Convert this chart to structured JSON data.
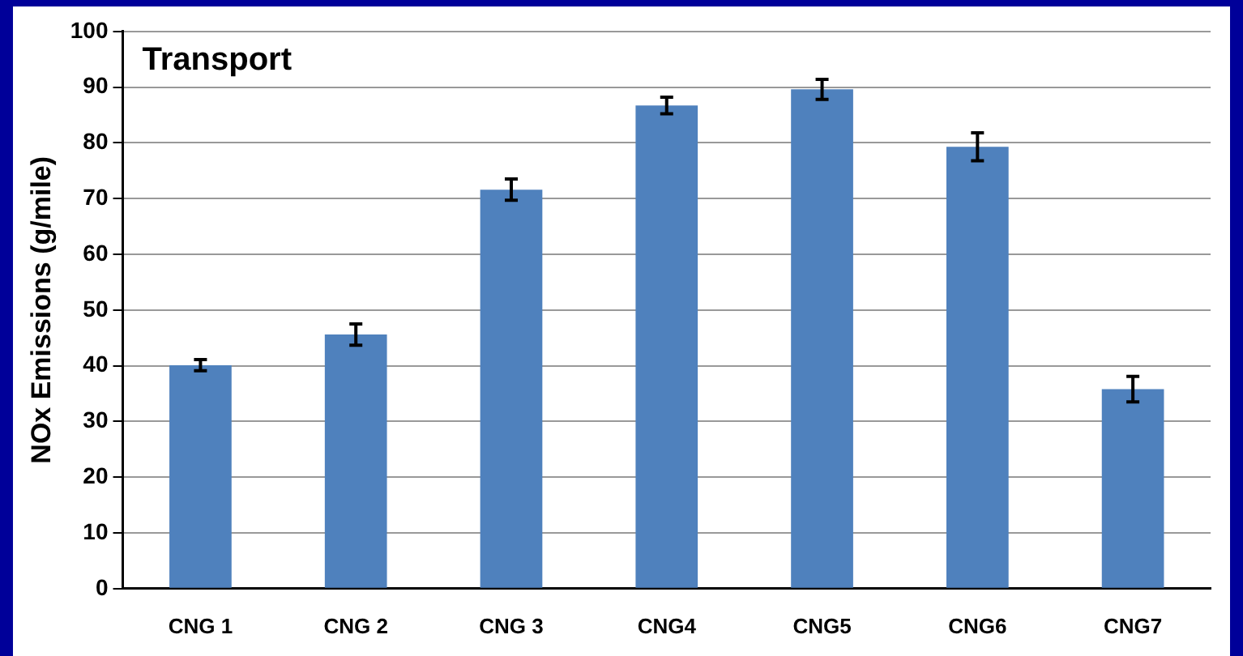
{
  "chart_data": {
    "type": "bar",
    "title": "Transport",
    "ylabel": "NOx Emissions (g/mile)",
    "categories": [
      "CNG 1",
      "CNG 2",
      "CNG 3",
      "CNG4",
      "CNG5",
      "CNG6",
      "CNG7"
    ],
    "values": [
      40.1,
      45.6,
      71.6,
      86.7,
      89.6,
      79.3,
      35.8
    ],
    "errors": [
      1,
      1.9,
      1.9,
      1.5,
      1.8,
      2.5,
      2.3
    ],
    "color": "#4f81bd",
    "ylim": [
      0,
      100
    ],
    "yticks": [
      0,
      10,
      20,
      30,
      40,
      50,
      60,
      70,
      80,
      90,
      100
    ],
    "grid": "y",
    "legend": false
  }
}
